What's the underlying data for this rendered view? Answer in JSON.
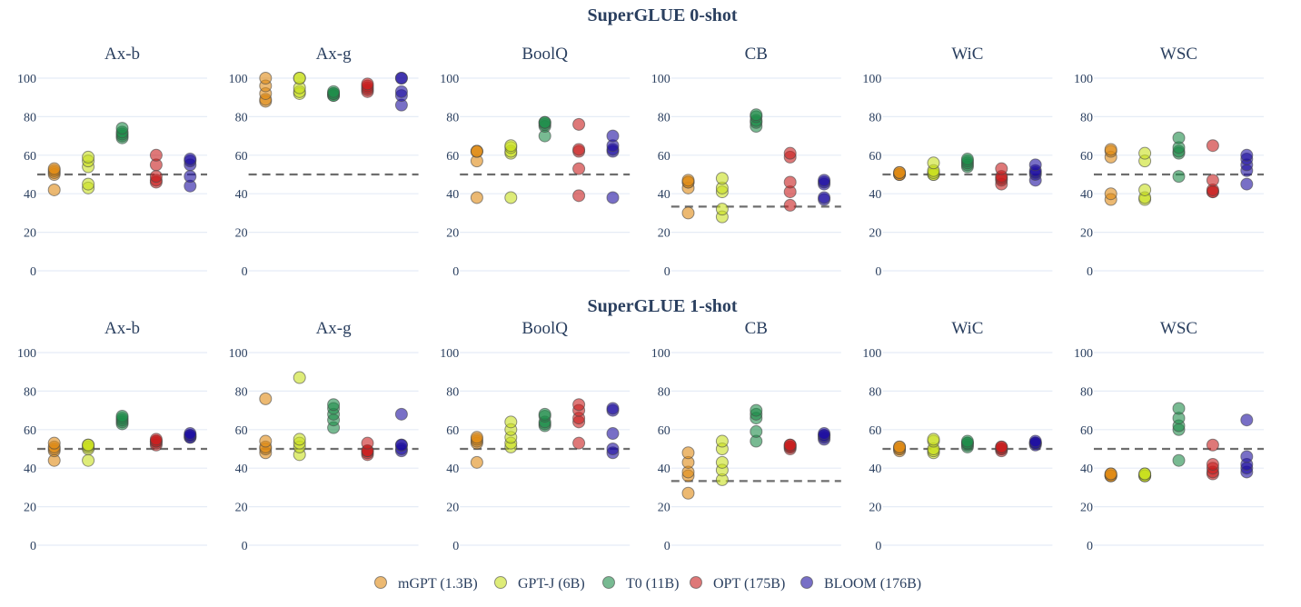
{
  "chart_data": {
    "type": "scatter",
    "series_names": [
      "mGPT (1.3B)",
      "GPT-J (6B)",
      "T0 (11B)",
      "OPT (175B)",
      "BLOOM (176B)"
    ],
    "colors": [
      "#e08a14",
      "#c8e01e",
      "#1e8c4a",
      "#c81e1e",
      "#1e0fa0"
    ],
    "legend_position": "bottom",
    "grid": true,
    "ylim": [
      0,
      100
    ],
    "yticks": [
      "0",
      "20",
      "40",
      "60",
      "80",
      "100"
    ],
    "rows": [
      {
        "title": "SuperGLUE 0-shot",
        "panels": [
          {
            "title": "Ax-b",
            "baseline": 50,
            "values": [
              [
                42,
                50,
                51,
                52,
                53
              ],
              [
                43,
                45,
                54,
                57,
                59
              ],
              [
                69,
                70,
                71,
                72,
                74
              ],
              [
                46,
                47,
                49,
                55,
                60
              ],
              [
                44,
                49,
                55,
                57,
                58
              ]
            ]
          },
          {
            "title": "Ax-g",
            "baseline": 50,
            "values": [
              [
                88,
                89,
                92,
                96,
                100
              ],
              [
                92,
                93,
                95,
                100,
                100
              ],
              [
                91,
                91,
                92,
                92,
                93
              ],
              [
                93,
                94,
                95,
                96,
                97
              ],
              [
                86,
                91,
                93,
                100,
                100
              ]
            ]
          },
          {
            "title": "BoolQ",
            "baseline": 50,
            "values": [
              [
                38,
                57,
                62,
                62,
                62
              ],
              [
                38,
                61,
                62,
                64,
                65
              ],
              [
                70,
                75,
                76,
                77,
                77
              ],
              [
                39,
                53,
                62,
                63,
                76
              ],
              [
                38,
                62,
                63,
                65,
                70
              ]
            ]
          },
          {
            "title": "CB",
            "baseline": 33.3,
            "values": [
              [
                30,
                43,
                46,
                46,
                47
              ],
              [
                28,
                32,
                41,
                43,
                48
              ],
              [
                75,
                77,
                78,
                80,
                81
              ],
              [
                34,
                41,
                46,
                59,
                61
              ],
              [
                37,
                38,
                45,
                46,
                47
              ]
            ]
          },
          {
            "title": "WiC",
            "baseline": 50,
            "values": [
              [
                50,
                50,
                50,
                51,
                51
              ],
              [
                50,
                50,
                51,
                52,
                56
              ],
              [
                54,
                55,
                56,
                57,
                58
              ],
              [
                45,
                47,
                48,
                49,
                53
              ],
              [
                47,
                50,
                51,
                52,
                55
              ]
            ]
          },
          {
            "title": "WSC",
            "baseline": 50,
            "values": [
              [
                37,
                40,
                59,
                62,
                63
              ],
              [
                37,
                38,
                42,
                57,
                61
              ],
              [
                49,
                61,
                62,
                64,
                69
              ],
              [
                41,
                41,
                42,
                47,
                65
              ],
              [
                45,
                52,
                55,
                58,
                60
              ]
            ]
          }
        ]
      },
      {
        "title": "SuperGLUE 1-shot",
        "panels": [
          {
            "title": "Ax-b",
            "baseline": 50,
            "values": [
              [
                44,
                49,
                50,
                51,
                53
              ],
              [
                44,
                50,
                51,
                52,
                52
              ],
              [
                63,
                64,
                65,
                66,
                67
              ],
              [
                52,
                53,
                54,
                54,
                55
              ],
              [
                56,
                56,
                57,
                57,
                58
              ]
            ]
          },
          {
            "title": "Ax-g",
            "baseline": 50,
            "values": [
              [
                48,
                50,
                51,
                54,
                76
              ],
              [
                47,
                51,
                53,
                55,
                87
              ],
              [
                61,
                65,
                68,
                71,
                73
              ],
              [
                47,
                48,
                49,
                49,
                53
              ],
              [
                49,
                50,
                52,
                52,
                68
              ]
            ]
          },
          {
            "title": "BoolQ",
            "baseline": 50,
            "values": [
              [
                43,
                53,
                54,
                55,
                56
              ],
              [
                51,
                53,
                56,
                60,
                64
              ],
              [
                62,
                63,
                64,
                67,
                68
              ],
              [
                53,
                64,
                66,
                70,
                73
              ],
              [
                48,
                50,
                58,
                70,
                71
              ]
            ]
          },
          {
            "title": "CB",
            "baseline": 33.3,
            "values": [
              [
                27,
                36,
                38,
                43,
                48
              ],
              [
                34,
                39,
                43,
                50,
                54
              ],
              [
                54,
                59,
                66,
                68,
                70
              ],
              [
                50,
                51,
                51,
                52,
                52
              ],
              [
                55,
                56,
                57,
                57,
                58
              ]
            ]
          },
          {
            "title": "WiC",
            "baseline": 50,
            "values": [
              [
                49,
                50,
                50,
                51,
                51
              ],
              [
                48,
                49,
                50,
                54,
                55
              ],
              [
                51,
                52,
                53,
                53,
                54
              ],
              [
                49,
                50,
                50,
                51,
                51
              ],
              [
                52,
                53,
                53,
                53,
                54
              ]
            ]
          },
          {
            "title": "WSC",
            "baseline": 50,
            "values": [
              [
                36,
                36,
                36,
                37,
                37
              ],
              [
                36,
                36,
                36,
                37,
                37
              ],
              [
                44,
                60,
                62,
                66,
                71
              ],
              [
                37,
                38,
                40,
                42,
                52
              ],
              [
                38,
                40,
                42,
                46,
                65
              ]
            ]
          }
        ]
      }
    ]
  }
}
